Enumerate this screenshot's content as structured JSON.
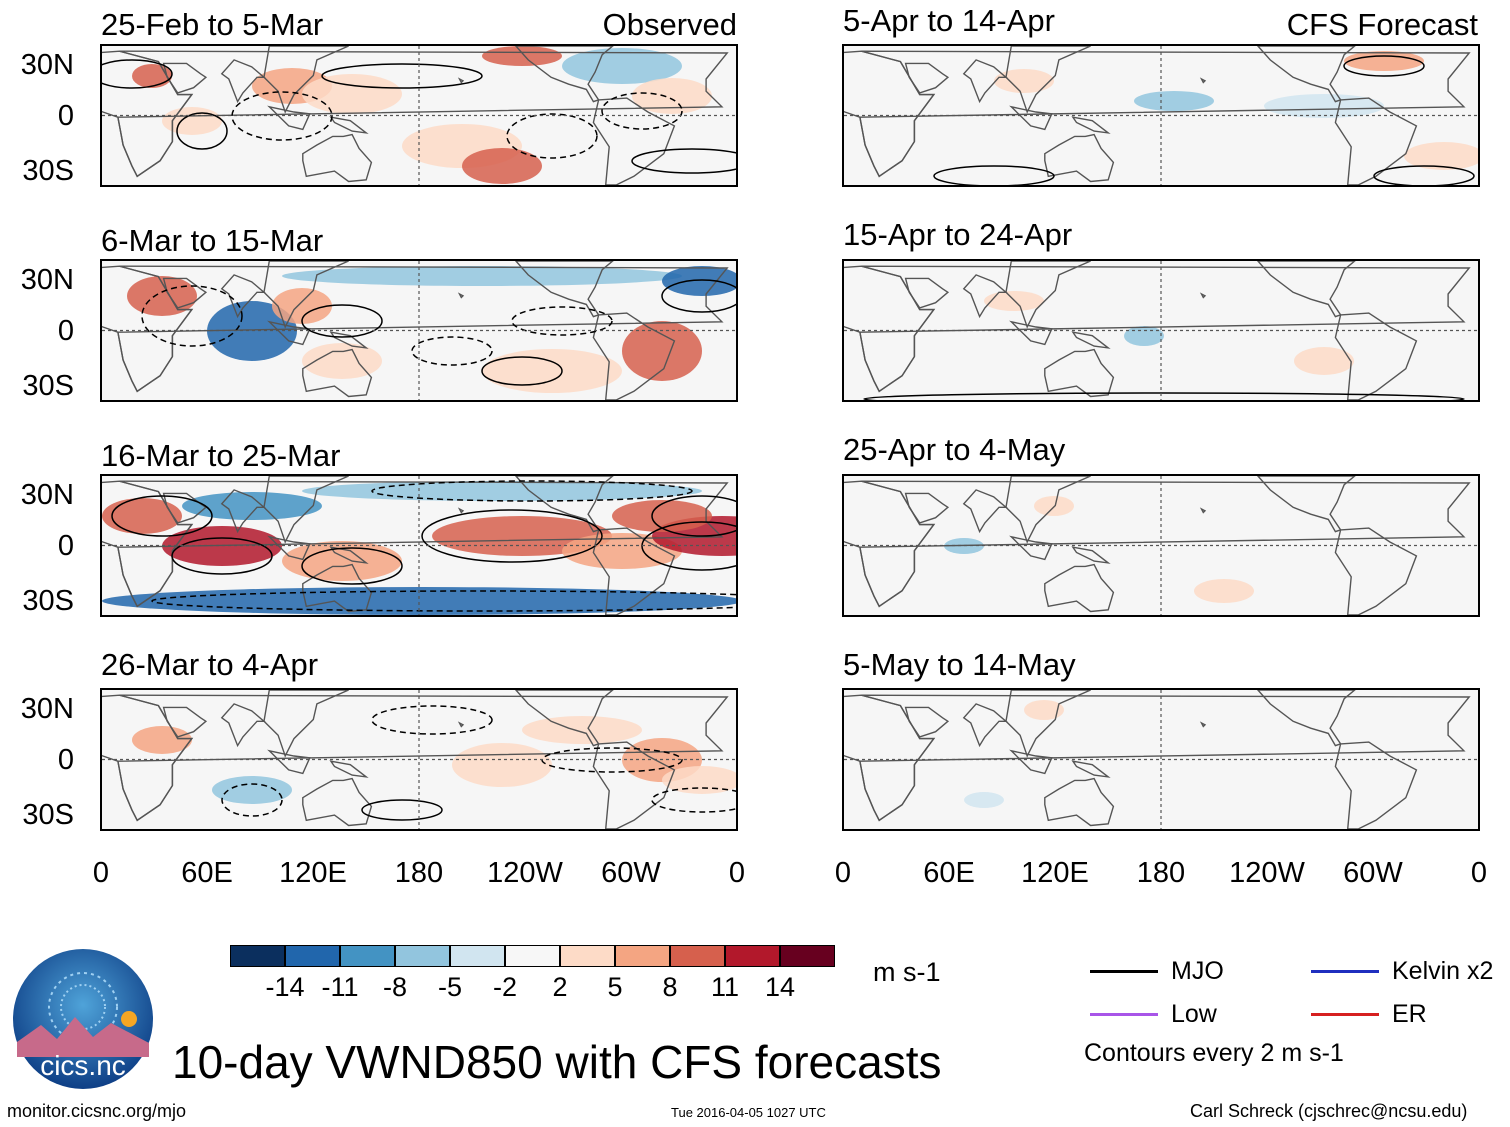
{
  "panels_left_label": "Observed",
  "panels_right_label": "CFS Forecast",
  "observed_panels": [
    {
      "title": "25-Feb to 5-Mar"
    },
    {
      "title": "6-Mar to 15-Mar"
    },
    {
      "title": "16-Mar to 25-Mar"
    },
    {
      "title": "26-Mar to 4-Apr"
    }
  ],
  "forecast_panels": [
    {
      "title": "5-Apr to 14-Apr"
    },
    {
      "title": "15-Apr to 24-Apr"
    },
    {
      "title": "25-Apr to 4-May"
    },
    {
      "title": "5-May to 14-May"
    }
  ],
  "lat_labels": [
    "30N",
    "0",
    "30S"
  ],
  "lon_labels": [
    "0",
    "60E",
    "120E",
    "180",
    "120W",
    "60W",
    "0"
  ],
  "colorbar": {
    "ticks": [
      "-14",
      "-11",
      "-8",
      "-5",
      "-2",
      "2",
      "5",
      "8",
      "11",
      "14"
    ],
    "colors": [
      "#0b2f5e",
      "#2166ac",
      "#4393c3",
      "#92c5de",
      "#d1e5f0",
      "#f7f7f7",
      "#fddbc7",
      "#f4a582",
      "#d6604d",
      "#b2182b",
      "#67001f"
    ],
    "units": "m s-1"
  },
  "legend": {
    "items": [
      {
        "label": "MJO",
        "color": "#000000"
      },
      {
        "label": "Kelvin x2",
        "color": "#1f2fbf"
      },
      {
        "label": "Low",
        "color": "#a855e8"
      },
      {
        "label": "ER",
        "color": "#d62020"
      }
    ],
    "note": "Contours every 2 m s-1"
  },
  "logo_text": "cics.nc",
  "main_title": "10-day VWND850 with CFS forecasts",
  "footer": {
    "url": "monitor.cicsnc.org/mjo",
    "timestamp": "Tue 2016-04-05 1027 UTC",
    "author": "Carl Schreck (cjschrec@ncsu.edu)"
  }
}
